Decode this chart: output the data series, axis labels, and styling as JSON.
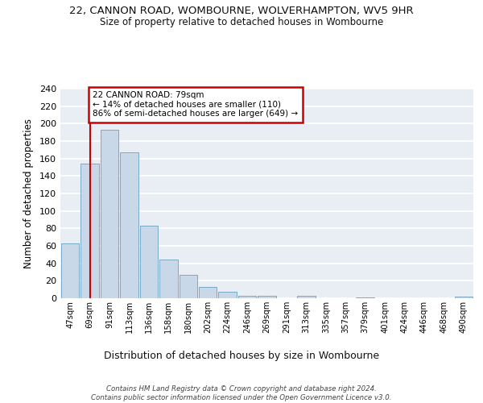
{
  "title1": "22, CANNON ROAD, WOMBOURNE, WOLVERHAMPTON, WV5 9HR",
  "title2": "Size of property relative to detached houses in Wombourne",
  "xlabel": "Distribution of detached houses by size in Wombourne",
  "ylabel": "Number of detached properties",
  "bar_color": "#c8d8e8",
  "bar_edge_color": "#7aaac8",
  "background_color": "#e8eef4",
  "grid_color": "#ffffff",
  "categories": [
    "47sqm",
    "69sqm",
    "91sqm",
    "113sqm",
    "136sqm",
    "158sqm",
    "180sqm",
    "202sqm",
    "224sqm",
    "246sqm",
    "269sqm",
    "291sqm",
    "313sqm",
    "335sqm",
    "357sqm",
    "379sqm",
    "401sqm",
    "424sqm",
    "446sqm",
    "468sqm",
    "490sqm"
  ],
  "values": [
    63,
    154,
    193,
    167,
    83,
    44,
    27,
    13,
    7,
    3,
    3,
    0,
    3,
    0,
    0,
    1,
    0,
    0,
    0,
    0,
    2
  ],
  "annotation_text": "22 CANNON ROAD: 79sqm\n← 14% of detached houses are smaller (110)\n86% of semi-detached houses are larger (649) →",
  "annotation_box_color": "#ffffff",
  "annotation_box_edge_color": "#cc0000",
  "vline_x": 1,
  "vline_color": "#cc0000",
  "ylim": [
    0,
    240
  ],
  "yticks": [
    0,
    20,
    40,
    60,
    80,
    100,
    120,
    140,
    160,
    180,
    200,
    220,
    240
  ],
  "footer": "Contains HM Land Registry data © Crown copyright and database right 2024.\nContains public sector information licensed under the Open Government Licence v3.0."
}
